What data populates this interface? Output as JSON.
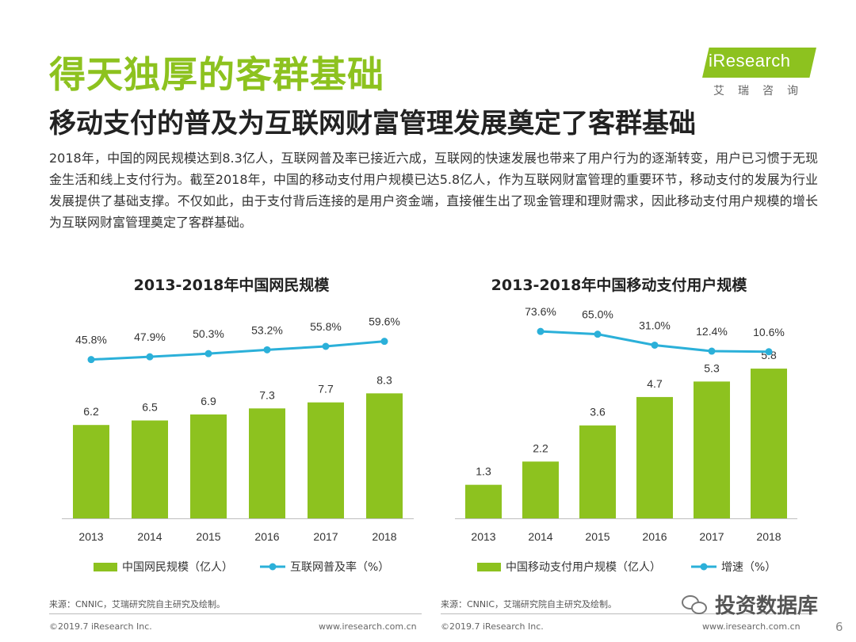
{
  "header": {
    "title": "得天独厚的客群基础",
    "subtitle": "移动支付的普及为互联网财富管理发展奠定了客群基础"
  },
  "logo": {
    "brand": "iResearch",
    "brand_cn": "艾瑞咨询"
  },
  "paragraph": "2018年，中国的网民规模达到8.3亿人，互联网普及率已接近六成，互联网的快速发展也带来了用户行为的逐渐转变，用户已习惯于无现金生活和线上支付行为。截至2018年，中国的移动支付用户规模已达5.8亿人，作为互联网财富管理的重要环节，移动支付的发展为行业发展提供了基础支撑。不仅如此，由于支付背后连接的是用户资金端，直接催生出了现金管理和理财需求，因此移动支付用户规模的增长为互联网财富管理奠定了客群基础。",
  "colors": {
    "bar": "#8dc21f",
    "line": "#2bb0d9",
    "title_green": "#8dc21f"
  },
  "chart_data": [
    {
      "type": "bar",
      "title": "2013-2018年中国网民规模",
      "categories": [
        "2013",
        "2014",
        "2015",
        "2016",
        "2017",
        "2018"
      ],
      "series": [
        {
          "name": "中国网民规模（亿人）",
          "type": "bar",
          "values": [
            6.2,
            6.5,
            6.9,
            7.3,
            7.7,
            8.3
          ],
          "labels": [
            "6.2",
            "6.5",
            "6.9",
            "7.3",
            "7.7",
            "8.3"
          ]
        },
        {
          "name": "互联网普及率（%）",
          "type": "line",
          "values": [
            45.8,
            47.9,
            50.3,
            53.2,
            55.8,
            59.6
          ],
          "labels": [
            "45.8%",
            "47.9%",
            "50.3%",
            "53.2%",
            "55.8%",
            "59.6%"
          ]
        }
      ],
      "ylim": [
        0,
        10
      ],
      "y2lim": [
        0,
        100
      ],
      "grid": false,
      "legend": "bottom"
    },
    {
      "type": "bar",
      "title": "2013-2018年中国移动支付用户规模",
      "categories": [
        "2013",
        "2014",
        "2015",
        "2016",
        "2017",
        "2018"
      ],
      "series": [
        {
          "name": "中国移动支付用户规模（亿人）",
          "type": "bar",
          "values": [
            1.3,
            2.2,
            3.6,
            4.7,
            5.3,
            5.8
          ],
          "labels": [
            "1.3",
            "2.2",
            "3.6",
            "4.7",
            "5.3",
            "5.8"
          ]
        },
        {
          "name": "增速（%）",
          "type": "line",
          "values": [
            null,
            73.6,
            65.0,
            31.0,
            12.4,
            10.6
          ],
          "labels": [
            "",
            "73.6%",
            "65.0%",
            "31.0%",
            "12.4%",
            "10.6%"
          ]
        }
      ],
      "ylim": [
        0,
        7
      ],
      "y2lim": [
        0,
        100
      ],
      "grid": false,
      "legend": "bottom"
    }
  ],
  "sources": {
    "left": "来源：CNNIC，艾瑞研究院自主研究及绘制。",
    "right": "来源：CNNIC，艾瑞研究院自主研究及绘制。"
  },
  "footer": {
    "copyright_left": "©2019.7 iResearch Inc.",
    "url_left": "www.iresearch.com.cn",
    "copyright_right": "©2019.7 iResearch Inc.",
    "url_right": "www.iresearch.com.cn",
    "page": "6"
  },
  "watermark": "投资数据库"
}
